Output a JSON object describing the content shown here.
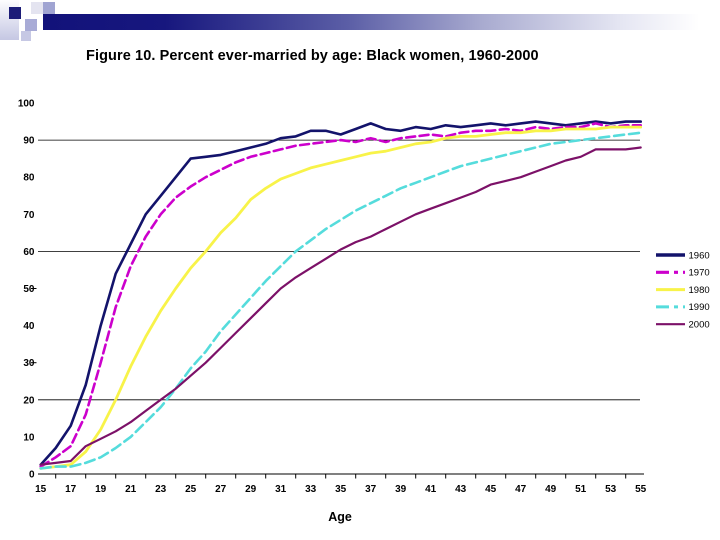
{
  "slide": {
    "title": "Figure 10. Percent ever-married by age: Black women, 1960-2000"
  },
  "theme": {
    "header_bar_navy": "#12127a",
    "header_strip_lavender": "#c5c7e3",
    "grid_color": "#000000",
    "background": "#ffffff"
  },
  "chart_data": {
    "type": "line",
    "title": "Figure 10. Percent ever-married by age: Black women, 1960-2000",
    "xlabel": "Age",
    "ylabel": "",
    "xlim": [
      15,
      55
    ],
    "ylim": [
      0,
      100
    ],
    "grid": "partial",
    "gridlines_at": [
      90,
      60,
      20
    ],
    "y_minor_dash_at": [
      50,
      30
    ],
    "legend_position": "right",
    "x_tick_labels": [
      "15",
      "17",
      "19",
      "21",
      "23",
      "25",
      "27",
      "29",
      "31",
      "33",
      "35",
      "37",
      "39",
      "41",
      "43",
      "45",
      "47",
      "49",
      "51",
      "53",
      "55"
    ],
    "y_tick_labels": [
      "0",
      "10",
      "20",
      "30",
      "40",
      "50",
      "60",
      "70",
      "80",
      "90",
      "100"
    ],
    "x": [
      15,
      16,
      17,
      18,
      19,
      20,
      21,
      22,
      23,
      24,
      25,
      26,
      27,
      28,
      29,
      30,
      31,
      32,
      33,
      34,
      35,
      36,
      37,
      38,
      39,
      40,
      41,
      42,
      43,
      44,
      45,
      46,
      47,
      48,
      49,
      50,
      51,
      52,
      53,
      54,
      55
    ],
    "series": [
      {
        "name": "1960",
        "color": "#13136b",
        "width": 2.6,
        "dash": null,
        "legend_width": 3.5,
        "values": [
          2.5,
          7,
          13,
          24,
          40,
          54,
          62,
          70,
          75,
          80,
          85,
          85.5,
          86,
          87,
          88,
          89,
          90.5,
          91,
          92.5,
          92.5,
          91.5,
          93,
          94.5,
          93,
          92.5,
          93.5,
          93,
          94,
          93.5,
          94,
          94.5,
          94,
          94.5,
          95,
          94.5,
          94,
          94.5,
          95,
          94.5,
          95,
          95
        ]
      },
      {
        "name": "1970",
        "color": "#cc00cc",
        "width": 2.6,
        "dash": "9 4.5",
        "legend_width": 3.2,
        "values": [
          2,
          4.5,
          7.5,
          16,
          30,
          45,
          56,
          64,
          70,
          74.5,
          77.5,
          80,
          82,
          84,
          85.5,
          86.5,
          87.5,
          88.5,
          89,
          89.5,
          90,
          89.5,
          90.5,
          89.5,
          90.5,
          91,
          91.5,
          91,
          92,
          92.5,
          92.5,
          93,
          92.5,
          93.5,
          93,
          93.5,
          93.5,
          94.5,
          93.5,
          94,
          94
        ]
      },
      {
        "name": "1980",
        "color": "#f8f349",
        "width": 2.8,
        "dash": null,
        "legend_width": 3.0,
        "values": [
          1.5,
          2,
          2.5,
          6,
          12,
          20,
          29,
          37,
          44,
          50,
          55.5,
          60,
          65,
          69,
          74,
          77,
          79.5,
          81,
          82.5,
          83.5,
          84.5,
          85.5,
          86.5,
          87,
          88,
          89,
          89.5,
          90.5,
          91,
          91,
          91.5,
          92,
          92,
          92.5,
          92.5,
          93,
          93,
          93,
          93.5,
          93.5,
          93.5
        ]
      },
      {
        "name": "1990",
        "color": "#55dcdc",
        "width": 2.6,
        "dash": "10 5",
        "legend_width": 3.0,
        "values": [
          1.5,
          2,
          2,
          3,
          4.5,
          7,
          10,
          14,
          18,
          23,
          28.5,
          33,
          38.5,
          43,
          47.5,
          52,
          56,
          60,
          63,
          66,
          68.5,
          71,
          73,
          75,
          77,
          78.5,
          80,
          81.5,
          83,
          84,
          85,
          86,
          87,
          88,
          89,
          89.5,
          90,
          90.5,
          91,
          91.5,
          92
        ]
      },
      {
        "name": "2000",
        "color": "#7c1168",
        "width": 2.2,
        "dash": null,
        "legend_width": 2.2,
        "values": [
          2.5,
          3,
          3.5,
          7.5,
          9.5,
          11.5,
          14,
          17,
          20,
          23,
          26.5,
          30,
          34,
          38,
          42,
          46,
          50,
          53,
          55.5,
          58,
          60.5,
          62.5,
          64,
          66,
          68,
          70,
          71.5,
          73,
          74.5,
          76,
          78,
          79,
          80,
          81.5,
          83,
          84.5,
          85.5,
          87.5,
          87.5,
          87.5,
          88
        ]
      }
    ]
  }
}
